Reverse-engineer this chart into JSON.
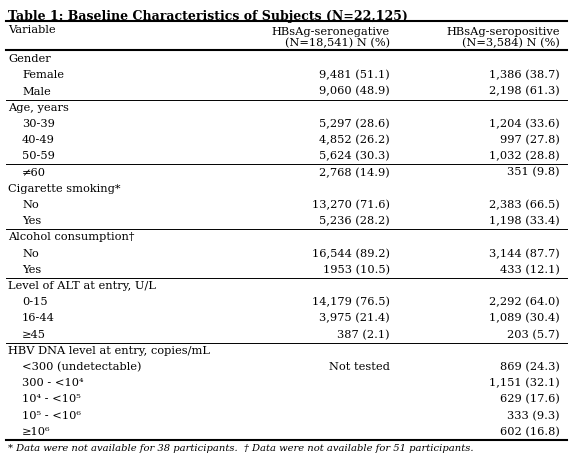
{
  "title": "Table 1: Baseline Characteristics of Subjects (N=22,125)",
  "rows": [
    {
      "label": "Gender",
      "indent": 0,
      "seroneg": "",
      "seropos": "",
      "section_header": true
    },
    {
      "label": "Female",
      "indent": 1,
      "seroneg": "9,481 (51.1)",
      "seropos": "1,386 (38.7)",
      "section_header": false
    },
    {
      "label": "Male",
      "indent": 1,
      "seroneg": "9,060 (48.9)",
      "seropos": "2,198 (61.3)",
      "section_header": false
    },
    {
      "label": "Age, years",
      "indent": 0,
      "seroneg": "",
      "seropos": "",
      "section_header": true
    },
    {
      "label": "30-39",
      "indent": 1,
      "seroneg": "5,297 (28.6)",
      "seropos": "1,204 (33.6)",
      "section_header": false
    },
    {
      "label": "40-49",
      "indent": 1,
      "seroneg": "4,852 (26.2)",
      "seropos": "997 (27.8)",
      "section_header": false
    },
    {
      "label": "50-59",
      "indent": 1,
      "seroneg": "5,624 (30.3)",
      "seropos": "1,032 (28.8)",
      "section_header": false
    },
    {
      "label": "≠60",
      "indent": 1,
      "seroneg": "2,768 (14.9)",
      "seropos": "351 (9.8)",
      "section_header": false
    },
    {
      "label": "Cigarette smoking*",
      "indent": 0,
      "seroneg": "",
      "seropos": "",
      "section_header": true
    },
    {
      "label": "No",
      "indent": 1,
      "seroneg": "13,270 (71.6)",
      "seropos": "2,383 (66.5)",
      "section_header": false
    },
    {
      "label": "Yes",
      "indent": 1,
      "seroneg": "5,236 (28.2)",
      "seropos": "1,198 (33.4)",
      "section_header": false
    },
    {
      "label": "Alcohol consumption†",
      "indent": 0,
      "seroneg": "",
      "seropos": "",
      "section_header": true
    },
    {
      "label": "No",
      "indent": 1,
      "seroneg": "16,544 (89.2)",
      "seropos": "3,144 (87.7)",
      "section_header": false
    },
    {
      "label": "Yes",
      "indent": 1,
      "seroneg": "1953 (10.5)",
      "seropos": "433 (12.1)",
      "section_header": false
    },
    {
      "label": "Level of ALT at entry, U/L",
      "indent": 0,
      "seroneg": "",
      "seropos": "",
      "section_header": true
    },
    {
      "label": "0-15",
      "indent": 1,
      "seroneg": "14,179 (76.5)",
      "seropos": "2,292 (64.0)",
      "section_header": false
    },
    {
      "label": "16-44",
      "indent": 1,
      "seroneg": "3,975 (21.4)",
      "seropos": "1,089 (30.4)",
      "section_header": false
    },
    {
      "label": "≥45",
      "indent": 1,
      "seroneg": "387 (2.1)",
      "seropos": "203 (5.7)",
      "section_header": false
    },
    {
      "label": "HBV DNA level at entry, copies/mL",
      "indent": 0,
      "seroneg": "",
      "seropos": "",
      "section_header": true
    },
    {
      "label": "<300 (undetectable)",
      "indent": 1,
      "seroneg": "Not tested",
      "seropos": "869 (24.3)",
      "section_header": false
    },
    {
      "label": "300 - <10⁴",
      "indent": 1,
      "seroneg": "",
      "seropos": "1,151 (32.1)",
      "section_header": false
    },
    {
      "label": "10⁴ - <10⁵",
      "indent": 1,
      "seroneg": "",
      "seropos": "629 (17.6)",
      "section_header": false
    },
    {
      "label": "10⁵ - <10⁶",
      "indent": 1,
      "seroneg": "",
      "seropos": "333 (9.3)",
      "section_header": false
    },
    {
      "label": "≥10⁶",
      "indent": 1,
      "seroneg": "",
      "seropos": "602 (16.8)",
      "section_header": false
    }
  ],
  "footnote": "* Data were not available for 38 participants.  † Data were not available for 51 participants.",
  "dividers_after": [
    2,
    6,
    10,
    13,
    17
  ],
  "col1_header": "Variable",
  "col2_header_l1": "HBsAg-seronegative",
  "col2_header_l2": "(N=18,541) N (%)",
  "col3_header_l1": "HBsAg-seropositive",
  "col3_header_l2": "(N=3,584) N (%)",
  "bg_color": "#ffffff",
  "title_fontsize": 9.0,
  "header_fontsize": 8.2,
  "body_fontsize": 8.2,
  "footnote_fontsize": 7.2
}
